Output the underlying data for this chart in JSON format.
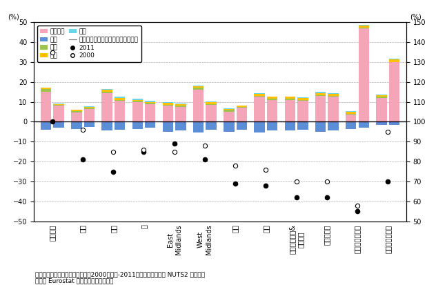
{
  "regions": [
    "ロンドン",
    "南東",
    "南西",
    "東",
    "East\nMidlands",
    "West\nMidlands",
    "北東",
    "北西",
    "ヨークシャー&\nハンバー",
    "ウェールズ",
    "スコットランド",
    "北アイルランド"
  ],
  "services_a": [
    15.0,
    4.5,
    14.5,
    10.0,
    8.0,
    16.0,
    5.0,
    12.5,
    11.0,
    13.0,
    3.5,
    12.0
  ],
  "services_b": [
    8.0,
    6.5,
    10.5,
    9.0,
    7.5,
    8.5,
    7.0,
    11.0,
    10.5,
    12.5,
    47.0,
    30.0
  ],
  "manufacturing_a": [
    -4.0,
    -3.5,
    -4.5,
    -3.5,
    -5.0,
    -5.5,
    -5.0,
    -5.5,
    -4.5,
    -5.0,
    -3.5,
    -1.5
  ],
  "manufacturing_b": [
    -3.0,
    -2.5,
    -4.0,
    -3.0,
    -4.5,
    -4.0,
    -4.0,
    -4.5,
    -4.0,
    -4.5,
    -3.0,
    -1.5
  ],
  "finance_a": [
    1.5,
    1.0,
    0.5,
    0.5,
    0.5,
    1.0,
    1.0,
    0.5,
    0.5,
    0.5,
    0.5,
    0.5
  ],
  "finance_b": [
    0.5,
    0.5,
    0.5,
    0.5,
    0.5,
    0.5,
    0.5,
    0.5,
    0.5,
    0.5,
    0.5,
    0.0
  ],
  "construction_a": [
    0.5,
    0.5,
    1.0,
    0.5,
    1.0,
    1.0,
    0.5,
    1.0,
    1.0,
    1.0,
    1.0,
    1.0
  ],
  "construction_b": [
    0.5,
    0.5,
    1.0,
    0.5,
    1.0,
    1.0,
    0.5,
    1.0,
    1.0,
    1.0,
    1.0,
    1.5
  ],
  "agriculture_a": [
    0.2,
    0.2,
    0.5,
    0.5,
    0.3,
    0.3,
    0.2,
    0.3,
    0.3,
    0.5,
    0.3,
    0.3
  ],
  "agriculture_b": [
    0.2,
    0.2,
    0.5,
    0.5,
    0.3,
    0.3,
    0.2,
    0.3,
    0.3,
    0.5,
    0.3,
    0.3
  ],
  "wage_2011": [
    100,
    81,
    75,
    85,
    89,
    81,
    69,
    68,
    62,
    62,
    55,
    70
  ],
  "wage_2000": [
    135,
    96,
    85,
    86,
    85,
    88,
    78,
    76,
    70,
    70,
    58,
    95
  ],
  "colors": {
    "services": "#F4A6B8",
    "manufacturing": "#5B8ED6",
    "finance": "#9DC34E",
    "construction": "#FFC000",
    "agriculture": "#6DD5E8"
  },
  "ylim_left": [
    -50,
    50
  ],
  "ylim_right": [
    50,
    150
  ],
  "yticks_left": [
    -50,
    -40,
    -30,
    -20,
    -10,
    0,
    10,
    20,
    30,
    40,
    50
  ],
  "yticks_right": [
    50,
    60,
    70,
    80,
    90,
    100,
    110,
    120,
    130,
    140,
    150
  ],
  "footnote1": "備考：業種別数値は雇用伸び率（2000年から‑2011年）。地域区分は NUTS2 レベル。",
  "footnote2": "資料： Eurostat から経済産業省作成。"
}
